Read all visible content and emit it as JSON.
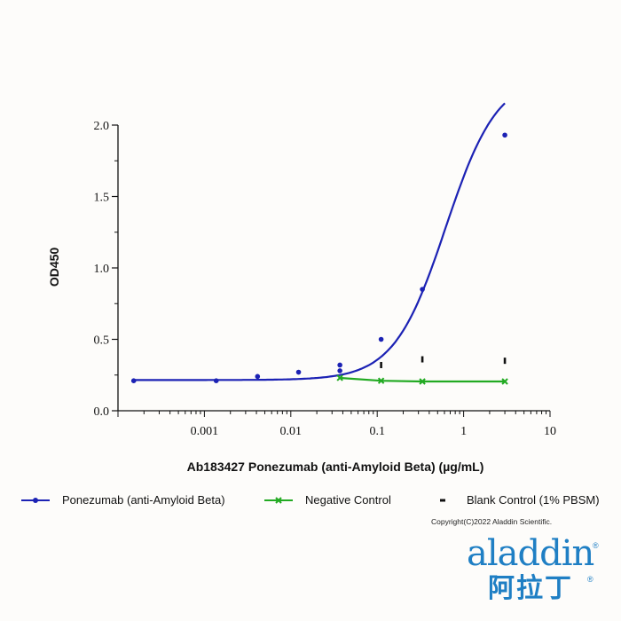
{
  "chart_data": {
    "type": "scatter",
    "xlabel": "Ab183427 Ponezumab (anti-Amyloid Beta) (µg/mL)",
    "ylabel": "OD450",
    "x_scale": "log",
    "xlim": [
      0.0001,
      10
    ],
    "ylim": [
      0,
      2.0
    ],
    "x_ticks": [
      {
        "value": 0.001,
        "label": "0.001"
      },
      {
        "value": 0.01,
        "label": "0.01"
      },
      {
        "value": 0.1,
        "label": "0.1"
      },
      {
        "value": 1,
        "label": "1"
      },
      {
        "value": 10,
        "label": "10"
      }
    ],
    "y_ticks": [
      {
        "value": 0.0,
        "label": "0.0"
      },
      {
        "value": 0.5,
        "label": "0.5"
      },
      {
        "value": 1.0,
        "label": "1.0"
      },
      {
        "value": 1.5,
        "label": "1.5"
      },
      {
        "value": 2.0,
        "label": "2.0"
      }
    ],
    "grid": false,
    "legend_position": "bottom",
    "series": [
      {
        "name": "Ponezumab (anti-Amyloid Beta)",
        "color": "#1c22b4",
        "marker": "circle",
        "fit": {
          "bottom": 0.215,
          "top": 2.35,
          "ec50": 0.62,
          "hill": 1.45,
          "x_from": 0.000152,
          "x_to": 3.0
        },
        "points": [
          {
            "x": 0.000152,
            "y": 0.21
          },
          {
            "x": 0.00137,
            "y": 0.21
          },
          {
            "x": 0.00412,
            "y": 0.24
          },
          {
            "x": 0.0123,
            "y": 0.27
          },
          {
            "x": 0.037,
            "y": 0.28
          },
          {
            "x": 0.037,
            "y": 0.32
          },
          {
            "x": 0.111,
            "y": 0.5
          },
          {
            "x": 0.333,
            "y": 0.85
          },
          {
            "x": 3.0,
            "y": 1.93
          }
        ]
      },
      {
        "name": "Negative Control",
        "color": "#22aa22",
        "marker": "x",
        "line": true,
        "points": [
          {
            "x": 0.037,
            "y": 0.23
          },
          {
            "x": 0.111,
            "y": 0.21
          },
          {
            "x": 0.333,
            "y": 0.205
          },
          {
            "x": 3.0,
            "y": 0.205
          }
        ]
      },
      {
        "name": "Blank Control (1% PBSM)",
        "color": "#111111",
        "marker": "dash",
        "points": [
          {
            "x": 0.111,
            "y": 0.32
          },
          {
            "x": 0.333,
            "y": 0.36
          },
          {
            "x": 3.0,
            "y": 0.35
          }
        ]
      }
    ]
  },
  "footer": {
    "copyright": "Copyright(C)2022 Aladdin Scientific.",
    "logo_text": "aladdin",
    "logo_cn": "阿拉丁",
    "registered_mark": "®"
  }
}
